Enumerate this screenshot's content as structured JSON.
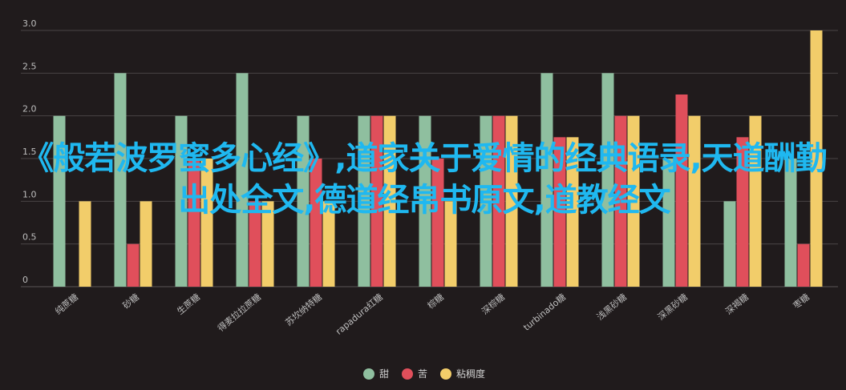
{
  "chart_data": {
    "type": "bar",
    "categories": [
      "纯蔗糖",
      "砂糖",
      "生蔗糖",
      "得麦拉拉蔗糖",
      "苏坎纳特糖",
      "rapadura红糖",
      "棕糖",
      "深棕糖",
      "turbinado糖",
      "浅黑砂糖",
      "深黑砂糖",
      "深褐糖",
      "枣糖"
    ],
    "series": [
      {
        "name": "甜",
        "color": "#8fbf9f",
        "values": [
          2.0,
          2.5,
          2.0,
          2.5,
          2.0,
          2.0,
          2.0,
          2.0,
          2.5,
          2.5,
          1.5,
          1.0,
          1.5
        ]
      },
      {
        "name": "苦",
        "color": "#e04f5b",
        "values": [
          0,
          0.5,
          1.5,
          1.0,
          1.5,
          2.0,
          1.5,
          2.0,
          1.75,
          2.0,
          2.25,
          1.75,
          0.5
        ]
      },
      {
        "name": "粘稠度",
        "color": "#f2cd6a",
        "values": [
          1.0,
          1.0,
          1.5,
          1.0,
          1.0,
          2.0,
          1.0,
          2.0,
          1.75,
          2.0,
          2.0,
          2.0,
          3.0
        ]
      }
    ],
    "ylim": [
      0,
      3.0
    ],
    "yticks": [
      "3.0",
      "2.5",
      "2.0",
      "1.5",
      "1.0",
      "0.5",
      "0"
    ],
    "grid": true,
    "legend": "bottom-center"
  },
  "overlay_text": "《般若波罗蜜多心经》,道家关于爱情的经典语录,天道酬勤出处全文,德道经帛书原文,道教经文"
}
